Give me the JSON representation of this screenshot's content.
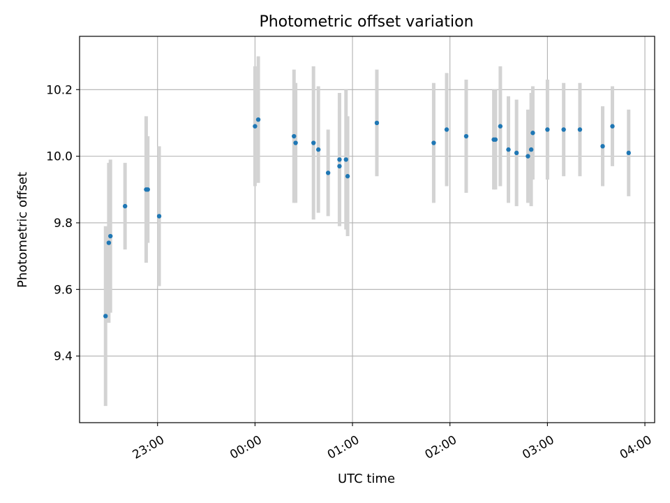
{
  "chart_data": {
    "type": "scatter",
    "title": "Photometric offset variation",
    "xlabel": "UTC time",
    "ylabel": "Photometric offset",
    "x_axis_kind": "time",
    "xlim": [
      "22:12",
      "04:06"
    ],
    "ylim": [
      9.2,
      10.36
    ],
    "grid": true,
    "x_ticks": [
      "23:00",
      "00:00",
      "01:00",
      "02:00",
      "03:00",
      "04:00"
    ],
    "y_ticks": [
      "9.4",
      "9.6",
      "9.8",
      "10.0",
      "10.2"
    ],
    "marker_color": "#1f77b4",
    "errorbar_color": "#d3d3d3",
    "series": [
      {
        "points": [
          {
            "x": "22:28",
            "y": 9.52,
            "err": 0.27
          },
          {
            "x": "22:30",
            "y": 9.74,
            "err": 0.24
          },
          {
            "x": "22:31",
            "y": 9.76,
            "err": 0.23
          },
          {
            "x": "22:40",
            "y": 9.85,
            "err": 0.13
          },
          {
            "x": "22:53",
            "y": 9.9,
            "err": 0.22
          },
          {
            "x": "22:54",
            "y": 9.9,
            "err": 0.16
          },
          {
            "x": "23:01",
            "y": 9.82,
            "err": 0.21
          },
          {
            "x": "00:00",
            "y": 10.09,
            "err": 0.18
          },
          {
            "x": "00:02",
            "y": 10.11,
            "err": 0.19
          },
          {
            "x": "00:24",
            "y": 10.06,
            "err": 0.2
          },
          {
            "x": "00:25",
            "y": 10.04,
            "err": 0.18
          },
          {
            "x": "00:36",
            "y": 10.04,
            "err": 0.23
          },
          {
            "x": "00:39",
            "y": 10.02,
            "err": 0.19
          },
          {
            "x": "00:45",
            "y": 9.95,
            "err": 0.13
          },
          {
            "x": "00:52",
            "y": 9.99,
            "err": 0.2
          },
          {
            "x": "00:52",
            "y": 9.97,
            "err": 0.17
          },
          {
            "x": "00:56",
            "y": 9.99,
            "err": 0.21
          },
          {
            "x": "00:57",
            "y": 9.94,
            "err": 0.18
          },
          {
            "x": "01:15",
            "y": 10.1,
            "err": 0.16
          },
          {
            "x": "01:50",
            "y": 10.04,
            "err": 0.18
          },
          {
            "x": "01:58",
            "y": 10.08,
            "err": 0.17
          },
          {
            "x": "02:10",
            "y": 10.06,
            "err": 0.17
          },
          {
            "x": "02:27",
            "y": 10.05,
            "err": 0.15
          },
          {
            "x": "02:28",
            "y": 10.05,
            "err": 0.15
          },
          {
            "x": "02:31",
            "y": 10.09,
            "err": 0.18
          },
          {
            "x": "02:36",
            "y": 10.02,
            "err": 0.16
          },
          {
            "x": "02:41",
            "y": 10.01,
            "err": 0.16
          },
          {
            "x": "02:48",
            "y": 10.0,
            "err": 0.14
          },
          {
            "x": "02:50",
            "y": 10.02,
            "err": 0.17
          },
          {
            "x": "02:51",
            "y": 10.07,
            "err": 0.14
          },
          {
            "x": "03:00",
            "y": 10.08,
            "err": 0.15
          },
          {
            "x": "03:10",
            "y": 10.08,
            "err": 0.14
          },
          {
            "x": "03:20",
            "y": 10.08,
            "err": 0.14
          },
          {
            "x": "03:34",
            "y": 10.03,
            "err": 0.12
          },
          {
            "x": "03:40",
            "y": 10.09,
            "err": 0.12
          },
          {
            "x": "03:50",
            "y": 10.01,
            "err": 0.13
          }
        ]
      }
    ]
  }
}
